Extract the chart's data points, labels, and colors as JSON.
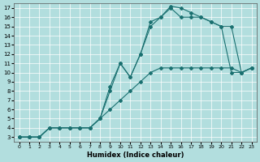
{
  "xlabel": "Humidex (Indice chaleur)",
  "ylabel": "",
  "xlim": [
    -0.5,
    23.5
  ],
  "ylim": [
    2.5,
    17.5
  ],
  "xticks": [
    0,
    1,
    2,
    3,
    4,
    5,
    6,
    7,
    8,
    9,
    10,
    11,
    12,
    13,
    14,
    15,
    16,
    17,
    18,
    19,
    20,
    21,
    22,
    23
  ],
  "yticks": [
    3,
    4,
    5,
    6,
    7,
    8,
    9,
    10,
    11,
    12,
    13,
    14,
    15,
    16,
    17
  ],
  "background_color": "#b2dede",
  "grid_color": "#ffffff",
  "line_color": "#1a7070",
  "line1": {
    "x": [
      0,
      1,
      2,
      3,
      4,
      5,
      6,
      7,
      8,
      9,
      10,
      11,
      12,
      13,
      14,
      15,
      16,
      17,
      18,
      19,
      20,
      21,
      22,
      23
    ],
    "y": [
      3,
      3,
      3,
      4,
      4,
      4,
      4,
      4,
      5,
      6,
      7,
      8,
      9,
      10,
      10.5,
      10.5,
      10.5,
      10.5,
      10.5,
      10.5,
      10.5,
      10.5,
      10,
      10.5
    ]
  },
  "line2": {
    "x": [
      0,
      1,
      2,
      3,
      4,
      5,
      6,
      7,
      8,
      9,
      10,
      11,
      12,
      13,
      14,
      15,
      16,
      17,
      18,
      19,
      20,
      21,
      22,
      23
    ],
    "y": [
      3,
      3,
      3,
      4,
      4,
      4,
      4,
      4,
      5,
      8,
      11,
      9.5,
      12,
      15,
      16,
      17,
      16,
      16,
      16,
      15.5,
      15,
      10,
      10,
      10.5
    ]
  },
  "line3": {
    "x": [
      0,
      1,
      2,
      3,
      4,
      5,
      6,
      7,
      8,
      9,
      10,
      11,
      12,
      13,
      14,
      15,
      16,
      17,
      18,
      19,
      20,
      21,
      22,
      23
    ],
    "y": [
      3,
      3,
      3,
      4,
      4,
      4,
      4,
      4,
      5,
      8.5,
      11,
      9.5,
      12,
      15.5,
      16,
      17.2,
      17,
      16.5,
      16,
      15.5,
      15,
      15,
      10,
      10.5
    ]
  }
}
